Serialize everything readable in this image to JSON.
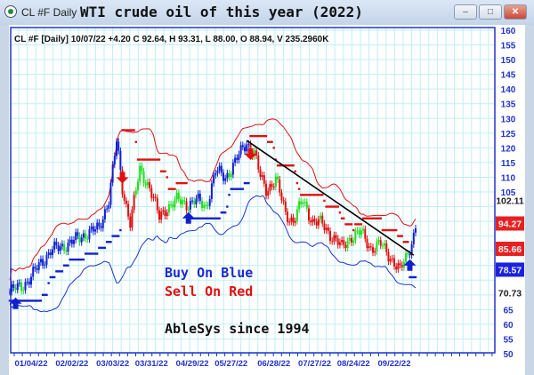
{
  "window": {
    "app_name": "CL #F Daily",
    "title": "WTI crude oil of this year (2022)",
    "buttons": {
      "minimize": "–",
      "maximize": "□",
      "close": "✕"
    }
  },
  "chart_data": {
    "type": "candlestick-line",
    "header": "CL #F [Daily] 10/07/22  +4.20 C 92.64, H 93.31, L 88.00, O 88.94, V 235.2960K",
    "ylim": [
      50,
      160
    ],
    "y_ticks": [
      160,
      155,
      150,
      145,
      140,
      135,
      130,
      125,
      120,
      115,
      110,
      105,
      100,
      95,
      90,
      85,
      80,
      75,
      70,
      65,
      60,
      55,
      50
    ],
    "y_tick_labels": [
      "160",
      "155",
      "150",
      "145",
      "140",
      "135",
      "130",
      "125",
      "120",
      "115",
      "110",
      "105",
      "",
      "",
      "",
      "",
      "",
      "",
      "",
      "65",
      "60",
      "55",
      "50"
    ],
    "x_ticks": [
      "01/04/22",
      "02/02/22",
      "03/03/22",
      "03/31/22",
      "04/29/22",
      "05/27/22",
      "06/28/22",
      "07/27/22",
      "08/24/22",
      "09/22/22"
    ],
    "grid": true,
    "price_closes": [
      [
        "2021-12-20",
        71
      ],
      [
        "2021-12-28",
        73
      ],
      [
        "2022-01-04",
        76
      ],
      [
        "2022-01-11",
        81
      ],
      [
        "2022-01-18",
        85
      ],
      [
        "2022-01-25",
        86
      ],
      [
        "2022-02-01",
        88
      ],
      [
        "2022-02-08",
        89
      ],
      [
        "2022-02-15",
        92
      ],
      [
        "2022-02-22",
        92
      ],
      [
        "2022-03-01",
        103
      ],
      [
        "2022-03-07",
        122
      ],
      [
        "2022-03-10",
        106
      ],
      [
        "2022-03-16",
        95
      ],
      [
        "2022-03-23",
        112
      ],
      [
        "2022-03-30",
        107
      ],
      [
        "2022-04-06",
        96
      ],
      [
        "2022-04-12",
        100
      ],
      [
        "2022-04-19",
        102
      ],
      [
        "2022-04-26",
        101
      ],
      [
        "2022-05-03",
        102
      ],
      [
        "2022-05-10",
        100
      ],
      [
        "2022-05-17",
        112
      ],
      [
        "2022-05-24",
        110
      ],
      [
        "2022-05-31",
        115
      ],
      [
        "2022-06-08",
        122
      ],
      [
        "2022-06-14",
        118
      ],
      [
        "2022-06-17",
        110
      ],
      [
        "2022-06-22",
        106
      ],
      [
        "2022-06-29",
        109
      ],
      [
        "2022-07-06",
        98
      ],
      [
        "2022-07-12",
        95
      ],
      [
        "2022-07-19",
        102
      ],
      [
        "2022-07-26",
        95
      ],
      [
        "2022-08-02",
        94
      ],
      [
        "2022-08-09",
        90
      ],
      [
        "2022-08-16",
        86
      ],
      [
        "2022-08-23",
        90
      ],
      [
        "2022-08-30",
        91
      ],
      [
        "2022-09-06",
        86
      ],
      [
        "2022-09-13",
        87
      ],
      [
        "2022-09-20",
        83
      ],
      [
        "2022-09-27",
        78
      ],
      [
        "2022-10-03",
        84
      ],
      [
        "2022-10-07",
        92.64
      ]
    ],
    "signals": [
      {
        "type": "buy",
        "date": "2021-12-23",
        "price": 67
      },
      {
        "type": "sell",
        "date": "2022-03-10",
        "price": 110
      },
      {
        "type": "buy",
        "date": "2022-04-27",
        "price": 96
      },
      {
        "type": "sell",
        "date": "2022-06-10",
        "price": 118
      },
      {
        "type": "buy",
        "date": "2022-10-04",
        "price": 80
      }
    ],
    "trendline": [
      [
        "2022-06-08",
        122.5
      ],
      [
        "2022-10-06",
        83.5
      ]
    ],
    "price_markers": [
      {
        "value": "102.11",
        "style": "plain"
      },
      {
        "value": "94.27",
        "style": "red"
      },
      {
        "value": "85.66",
        "style": "red"
      },
      {
        "value": "78.57",
        "style": "blue"
      },
      {
        "value": "70.73",
        "style": "plain"
      }
    ],
    "annotations": {
      "buy": "Buy On Blue",
      "sell": "Sell On Red",
      "brand": "AbleSys since 1994"
    },
    "colors": {
      "up_trend": "#1020d0",
      "down_trend": "#e01010",
      "neutral": "#22dd22",
      "grid": "#bfeff5",
      "axis": "#2233cc",
      "trendline": "#000000"
    }
  }
}
